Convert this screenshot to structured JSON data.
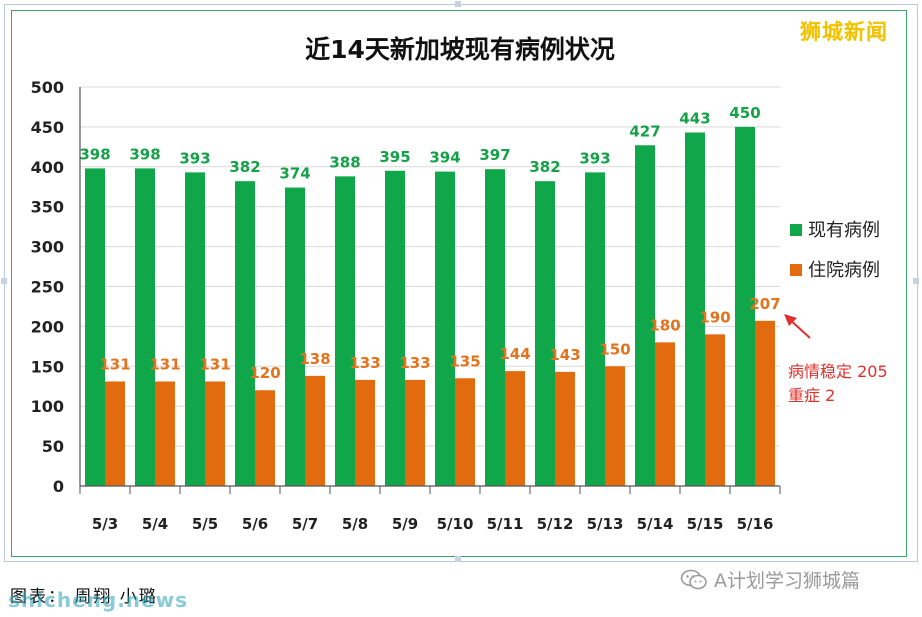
{
  "brand_text": "狮城新闻",
  "caption": "图表：  周翔 小璐",
  "watermark": "shicheng.news",
  "wechat_account": "A计划学习狮城篇",
  "annotation": {
    "line1": "病情稳定 205",
    "line2": "重症 2"
  },
  "colors": {
    "existing": "#10a64a",
    "hospitalized": "#e26b10",
    "existing_label": "#15a148",
    "hospitalized_label": "#e3731c",
    "annotation": "#e0302c"
  },
  "chart_data": {
    "type": "bar",
    "title": "近14天新加坡现有病例状况",
    "categories": [
      "5/3",
      "5/4",
      "5/5",
      "5/6",
      "5/7",
      "5/8",
      "5/9",
      "5/10",
      "5/11",
      "5/12",
      "5/13",
      "5/14",
      "5/15",
      "5/16"
    ],
    "series": [
      {
        "name": "现有病例",
        "values": [
          398,
          398,
          393,
          382,
          374,
          388,
          395,
          394,
          397,
          382,
          393,
          427,
          443,
          450
        ]
      },
      {
        "name": "住院病例",
        "values": [
          131,
          131,
          131,
          120,
          138,
          133,
          133,
          135,
          144,
          143,
          150,
          180,
          190,
          207
        ]
      }
    ],
    "ylim": [
      0,
      500
    ],
    "yticks": [
      0,
      50,
      100,
      150,
      200,
      250,
      300,
      350,
      400,
      450,
      500
    ],
    "grid": true,
    "legend_position": "right"
  }
}
